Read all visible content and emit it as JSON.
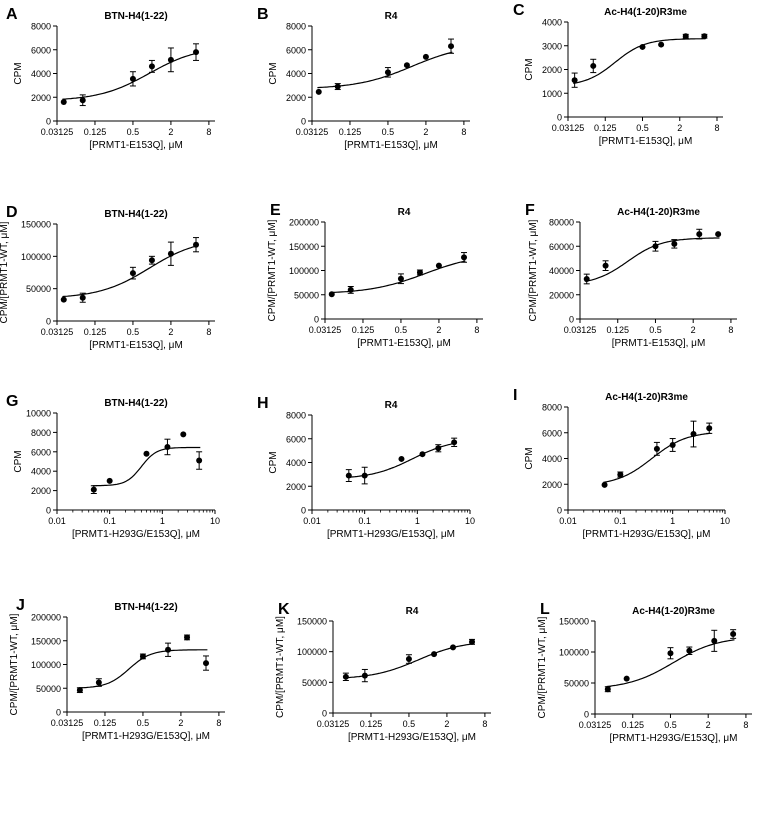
{
  "figure": {
    "description_free": true
  },
  "chart_data": [
    {
      "type": "scatter",
      "panel": "A",
      "title": "BTN-H4(1-22)",
      "xlabel": "[PRMT1-E153Q], μM",
      "ylabel": "CPM",
      "xscale": "log2",
      "xticks": [
        0.03125,
        0.125,
        0.5,
        2,
        8
      ],
      "xticklabels": [
        "0.03125",
        "0.125",
        "0.5",
        "2",
        "8"
      ],
      "xlim": [
        0.03125,
        10
      ],
      "yticks": [
        0,
        2000,
        4000,
        6000,
        8000
      ],
      "yticklabels": [
        "0",
        "2000",
        "4000",
        "6000",
        "8000"
      ],
      "ylim": [
        0,
        8000
      ],
      "x": [
        0.04,
        0.08,
        0.5,
        1,
        2,
        5
      ],
      "y": [
        1600,
        1750,
        3550,
        4600,
        5150,
        5800
      ],
      "err": [
        0,
        450,
        600,
        500,
        1000,
        700
      ],
      "fit": {
        "bottom": 1700,
        "top": 6300,
        "ec50": 0.9,
        "hill": 1.1
      }
    },
    {
      "type": "scatter",
      "panel": "B",
      "title": "R4",
      "xlabel": "[PRMT1-E153Q], μM",
      "ylabel": "CPM",
      "xscale": "log2",
      "xticks": [
        0.03125,
        0.125,
        0.5,
        2,
        8
      ],
      "xticklabels": [
        "0.03125",
        "0.125",
        "0.5",
        "2",
        "8"
      ],
      "xlim": [
        0.03125,
        10
      ],
      "yticks": [
        0,
        2000,
        4000,
        6000,
        8000
      ],
      "yticklabels": [
        "0",
        "2000",
        "4000",
        "6000",
        "8000"
      ],
      "ylim": [
        0,
        8000
      ],
      "x": [
        0.04,
        0.08,
        0.5,
        1,
        2,
        5
      ],
      "y": [
        2450,
        2900,
        4100,
        4700,
        5400,
        6300
      ],
      "err": [
        0,
        250,
        400,
        0,
        0,
        600
      ],
      "fit": {
        "bottom": 2700,
        "top": 6500,
        "ec50": 1.2,
        "hill": 1.0
      }
    },
    {
      "type": "scatter",
      "panel": "C",
      "title": "Ac-H4(1-20)R3me",
      "xlabel": "[PRMT1-E153Q], μM",
      "ylabel": "CPM",
      "xscale": "log2",
      "xticks": [
        0.03125,
        0.125,
        0.5,
        2,
        8
      ],
      "xticklabels": [
        "0.03125",
        "0.125",
        "0.5",
        "2",
        "8"
      ],
      "xlim": [
        0.03125,
        10
      ],
      "yticks": [
        0,
        1000,
        2000,
        3000,
        4000
      ],
      "yticklabels": [
        "0",
        "1000",
        "2000",
        "3000",
        "4000"
      ],
      "ylim": [
        0,
        4000
      ],
      "x": [
        0.04,
        0.08,
        0.5,
        1,
        2.5,
        5
      ],
      "y": [
        1550,
        2150,
        2950,
        3050,
        3400,
        3400
      ],
      "err": [
        300,
        280,
        0,
        0,
        80,
        80
      ],
      "fit": {
        "bottom": 1300,
        "top": 3300,
        "ec50": 0.18,
        "hill": 1.8
      }
    },
    {
      "type": "scatter",
      "panel": "D",
      "title": "BTN-H4(1-22)",
      "xlabel": "[PRMT1-E153Q], μM",
      "ylabel": "CPM/[PRMT1-WT, μM]",
      "xscale": "log2",
      "xticks": [
        0.03125,
        0.125,
        0.5,
        2,
        8
      ],
      "xticklabels": [
        "0.03125",
        "0.125",
        "0.5",
        "2",
        "8"
      ],
      "xlim": [
        0.03125,
        10
      ],
      "yticks": [
        0,
        50000,
        100000,
        150000
      ],
      "yticklabels": [
        "0",
        "50000",
        "100000",
        "150000"
      ],
      "ylim": [
        0,
        150000
      ],
      "x": [
        0.04,
        0.08,
        0.5,
        1,
        2,
        5
      ],
      "y": [
        33000,
        36000,
        74000,
        94000,
        104000,
        118000
      ],
      "err": [
        0,
        7000,
        9000,
        6000,
        18000,
        11000
      ],
      "fit": {
        "bottom": 35000,
        "top": 128000,
        "ec50": 0.9,
        "hill": 1.1
      }
    },
    {
      "type": "scatter",
      "panel": "E",
      "title": "R4",
      "xlabel": "[PRMT1-E153Q], μM",
      "ylabel": "CPM/[PRMT1-WT, μM]",
      "xscale": "log2",
      "xticks": [
        0.03125,
        0.125,
        0.5,
        2,
        8
      ],
      "xticklabels": [
        "0.03125",
        "0.125",
        "0.5",
        "2",
        "8"
      ],
      "xlim": [
        0.03125,
        10
      ],
      "yticks": [
        0,
        50000,
        100000,
        150000,
        200000
      ],
      "yticklabels": [
        "0",
        "50000",
        "100000",
        "150000",
        "200000"
      ],
      "ylim": [
        0,
        200000
      ],
      "x": [
        0.04,
        0.08,
        0.5,
        1,
        2,
        5
      ],
      "y": [
        51000,
        60000,
        83000,
        96000,
        110000,
        127000
      ],
      "err": [
        0,
        7000,
        10000,
        5000,
        0,
        10000
      ],
      "fit": {
        "bottom": 52000,
        "top": 135000,
        "ec50": 1.2,
        "hill": 1.0
      }
    },
    {
      "type": "scatter",
      "panel": "F",
      "title": "Ac-H4(1-20)R3me",
      "xlabel": "[PRMT1-E153Q], μM",
      "ylabel": "CPM/[PRMT1-WT, μM]",
      "xscale": "log2",
      "xticks": [
        0.03125,
        0.125,
        0.5,
        2,
        8
      ],
      "xticklabels": [
        "0.03125",
        "0.125",
        "0.5",
        "2",
        "8"
      ],
      "xlim": [
        0.03125,
        10
      ],
      "yticks": [
        0,
        20000,
        40000,
        60000,
        80000
      ],
      "yticklabels": [
        "0",
        "20000",
        "40000",
        "60000",
        "80000"
      ],
      "ylim": [
        0,
        80000
      ],
      "x": [
        0.04,
        0.08,
        0.5,
        1,
        2.5,
        5
      ],
      "y": [
        33000,
        44000,
        60000,
        62000,
        70000,
        70000
      ],
      "err": [
        4000,
        4000,
        4000,
        3500,
        4000,
        0
      ],
      "fit": {
        "bottom": 28000,
        "top": 67000,
        "ec50": 0.18,
        "hill": 1.6
      }
    },
    {
      "type": "scatter",
      "panel": "G",
      "title": "BTN-H4(1-22)",
      "xlabel": "[PRMT1-H293G/E153Q], μM",
      "ylabel": "CPM",
      "xscale": "log10",
      "xticks": [
        0.01,
        0.1,
        1,
        10
      ],
      "xticklabels": [
        "0.01",
        "0.1",
        "1",
        "10"
      ],
      "xlim": [
        0.01,
        10
      ],
      "yticks": [
        0,
        2000,
        4000,
        6000,
        8000,
        10000
      ],
      "yticklabels": [
        "0",
        "2000",
        "4000",
        "6000",
        "8000",
        "10000"
      ],
      "ylim": [
        0,
        10000
      ],
      "x": [
        0.05,
        0.1,
        0.5,
        1.25,
        2.5,
        5
      ],
      "y": [
        2100,
        3000,
        5800,
        6500,
        7800,
        5100
      ],
      "err": [
        400,
        0,
        0,
        800,
        0,
        900
      ],
      "fit": {
        "bottom": 2500,
        "top": 6450,
        "ec50": 0.4,
        "hill": 3.0
      }
    },
    {
      "type": "scatter",
      "panel": "H",
      "title": "R4",
      "xlabel": "[PRMT1-H293G/E153Q], μM",
      "ylabel": "CPM",
      "xscale": "log10",
      "xticks": [
        0.01,
        0.1,
        1,
        10
      ],
      "xticklabels": [
        "0.01",
        "0.1",
        "1",
        "10"
      ],
      "xlim": [
        0.01,
        10
      ],
      "yticks": [
        0,
        2000,
        4000,
        6000,
        8000
      ],
      "yticklabels": [
        "0",
        "2000",
        "4000",
        "6000",
        "8000"
      ],
      "ylim": [
        0,
        8000
      ],
      "x": [
        0.05,
        0.1,
        0.5,
        1.25,
        2.5,
        5
      ],
      "y": [
        2900,
        2900,
        4300,
        4700,
        5200,
        5700
      ],
      "err": [
        500,
        700,
        0,
        0,
        300,
        350
      ],
      "fit": {
        "bottom": 2600,
        "top": 6000,
        "ec50": 0.8,
        "hill": 1.1
      }
    },
    {
      "type": "scatter",
      "panel": "I",
      "title": "Ac-H4(1-20)R3me",
      "xlabel": "[PRMT1-H293G/E153Q], μM",
      "ylabel": "CPM",
      "xscale": "log10",
      "xticks": [
        0.01,
        0.1,
        1,
        10
      ],
      "xticklabels": [
        "0.01",
        "0.1",
        "1",
        "10"
      ],
      "xlim": [
        0.01,
        10
      ],
      "yticks": [
        0,
        2000,
        4000,
        6000,
        8000
      ],
      "yticklabels": [
        "0",
        "2000",
        "4000",
        "6000",
        "8000"
      ],
      "ylim": [
        0,
        8000
      ],
      "x": [
        0.05,
        0.1,
        0.5,
        1,
        2.5,
        5
      ],
      "y": [
        1950,
        2750,
        4750,
        5050,
        5900,
        6350
      ],
      "err": [
        0,
        200,
        500,
        500,
        1000,
        400
      ],
      "fit": {
        "bottom": 1900,
        "top": 6100,
        "ec50": 0.4,
        "hill": 1.3
      }
    },
    {
      "type": "scatter",
      "panel": "J",
      "title": "BTN-H4(1-22)",
      "xlabel": "[PRMT1-H293G/E153Q], μM",
      "ylabel": "CPM/[PRMT1-WT, μM]",
      "xscale": "log2",
      "xticks": [
        0.03125,
        0.125,
        0.5,
        2,
        8
      ],
      "xticklabels": [
        "0.03125",
        "0.125",
        "0.5",
        "2",
        "8"
      ],
      "xlim": [
        0.03125,
        10
      ],
      "yticks": [
        0,
        50000,
        100000,
        150000,
        200000
      ],
      "yticklabels": [
        "0",
        "50000",
        "100000",
        "150000",
        "200000"
      ],
      "ylim": [
        0,
        200000
      ],
      "x": [
        0.05,
        0.1,
        0.5,
        1.25,
        2.5,
        5
      ],
      "y": [
        46000,
        62000,
        117000,
        131000,
        157000,
        103000
      ],
      "err": [
        5000,
        8000,
        5000,
        14000,
        5000,
        15000
      ],
      "fit": {
        "bottom": 50000,
        "top": 131000,
        "ec50": 0.3,
        "hill": 2.5
      }
    },
    {
      "type": "scatter",
      "panel": "K",
      "title": "R4",
      "xlabel": "[PRMT1-H293G/E153Q], μM",
      "ylabel": "CPM/[PRMT1-WT, μM]",
      "xscale": "log2",
      "xticks": [
        0.03125,
        0.125,
        0.5,
        2,
        8
      ],
      "xticklabels": [
        "0.03125",
        "0.125",
        "0.5",
        "2",
        "8"
      ],
      "xlim": [
        0.03125,
        10
      ],
      "yticks": [
        0,
        50000,
        100000,
        150000
      ],
      "yticklabels": [
        "0",
        "50000",
        "100000",
        "150000"
      ],
      "ylim": [
        0,
        150000
      ],
      "x": [
        0.05,
        0.1,
        0.5,
        1.25,
        2.5,
        5
      ],
      "y": [
        59000,
        61000,
        88000,
        96000,
        107000,
        116000
      ],
      "err": [
        6000,
        10000,
        7000,
        0,
        0,
        4000
      ],
      "fit": {
        "bottom": 55000,
        "top": 118000,
        "ec50": 0.7,
        "hill": 1.2
      }
    },
    {
      "type": "scatter",
      "panel": "L",
      "title": "Ac-H4(1-20)R3me",
      "xlabel": "[PRMT1-H293G/E153Q], μM",
      "ylabel": "CPM/[PRMT1-WT, μM]",
      "xscale": "log2",
      "xticks": [
        0.03125,
        0.125,
        0.5,
        2,
        8
      ],
      "xticklabels": [
        "0.03125",
        "0.125",
        "0.5",
        "2",
        "8"
      ],
      "xlim": [
        0.03125,
        10
      ],
      "yticks": [
        0,
        50000,
        100000,
        150000
      ],
      "yticklabels": [
        "0",
        "50000",
        "100000",
        "150000"
      ],
      "ylim": [
        0,
        150000
      ],
      "x": [
        0.05,
        0.1,
        0.5,
        1,
        2.5,
        5
      ],
      "y": [
        40000,
        57000,
        98000,
        102000,
        118000,
        129000
      ],
      "err": [
        4000,
        0,
        9000,
        6000,
        17000,
        7000
      ],
      "fit": {
        "bottom": 40000,
        "top": 125000,
        "ec50": 0.55,
        "hill": 1.2
      }
    }
  ]
}
